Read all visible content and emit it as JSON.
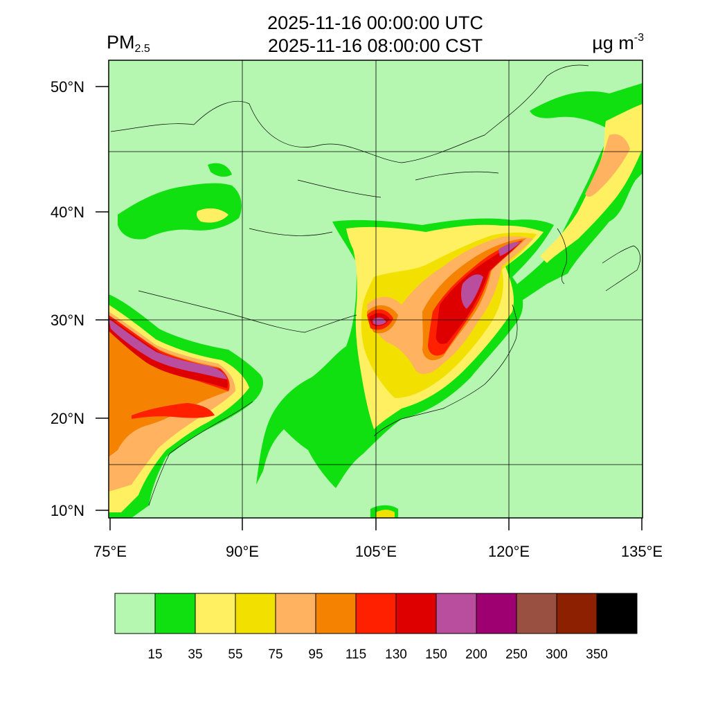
{
  "title": {
    "line1": "2025-11-16 00:00:00 UTC",
    "line2": "2025-11-16 08:00:00 CST"
  },
  "variable": {
    "main": "PM",
    "sub": "2.5"
  },
  "units": {
    "main": "µg m",
    "sup": "-3"
  },
  "axes": {
    "lat_labels": [
      "50°N",
      "40°N",
      "30°N",
      "20°N",
      "10°N"
    ],
    "lon_labels": [
      "75°E",
      "90°E",
      "105°E",
      "120°E",
      "135°E"
    ]
  },
  "colorbar": {
    "colors": [
      "#b5f7b0",
      "#10e010",
      "#fff061",
      "#f2e000",
      "#ffb25f",
      "#f58200",
      "#ff2000",
      "#de0000",
      "#ba4e9e",
      "#9e0071",
      "#9a5040",
      "#8c2000",
      "#000000"
    ],
    "labels": [
      "15",
      "35",
      "55",
      "75",
      "95",
      "115",
      "130",
      "150",
      "200",
      "250",
      "300",
      "350"
    ]
  },
  "colors": {
    "background": "#b5f7b0",
    "green": "#10e010",
    "light_yellow": "#fff061",
    "yellow": "#f2e000",
    "light_orange": "#ffb25f",
    "orange": "#f58200",
    "red": "#ff2000",
    "dark_red": "#de0000",
    "purple": "#ba4e9e",
    "dark_purple": "#9e0071"
  }
}
